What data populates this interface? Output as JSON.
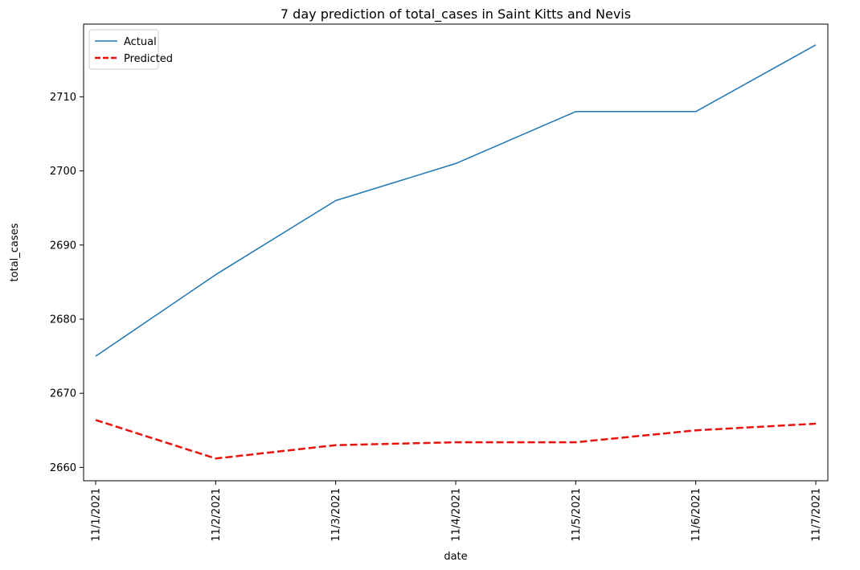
{
  "chart_data": {
    "type": "line",
    "title": "7 day prediction of total_cases in Saint Kitts and Nevis",
    "xlabel": "date",
    "ylabel": "total_cases",
    "categories": [
      "11/1/2021",
      "11/2/2021",
      "11/3/2021",
      "11/4/2021",
      "11/5/2021",
      "11/6/2021",
      "11/7/2021"
    ],
    "yticks": [
      2660,
      2670,
      2680,
      2690,
      2700,
      2710
    ],
    "ylim": [
      2658.2,
      2719.8
    ],
    "grid": false,
    "legend_position": "top-left",
    "series": [
      {
        "name": "Actual",
        "color": "#1f77b4",
        "style": "solid",
        "values": [
          2675,
          2686,
          2696,
          2701,
          2708,
          2708,
          2717
        ]
      },
      {
        "name": "Predicted",
        "color": "#e8130c",
        "style": "dashed",
        "values": [
          2666.4,
          2661.2,
          2663.0,
          2663.4,
          2663.4,
          2665.0,
          2665.9
        ]
      }
    ]
  }
}
